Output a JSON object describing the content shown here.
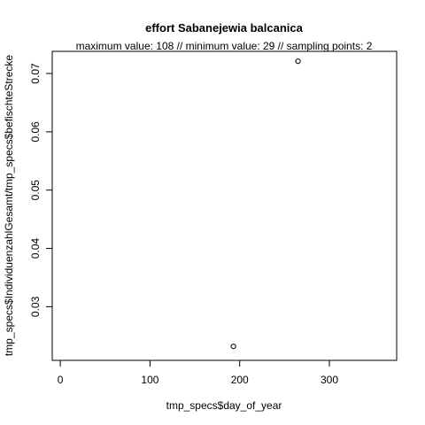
{
  "chart_data": {
    "type": "scatter",
    "title": "effort Sabanejewia balcanica",
    "subtitle": "maximum value: 108  //  minimum value: 29  // sampling points: 2",
    "xlabel": "tmp_specs$day_of_year",
    "ylabel": "tmp_specs$IndividuenzahlGesamt/tmp_specs$befischteStrecke",
    "xlim": [
      -9,
      375
    ],
    "ylim": [
      0.0208,
      0.0738
    ],
    "x_ticks": [
      0,
      100,
      200,
      300
    ],
    "x_tick_labels": [
      "0",
      "100",
      "200",
      "300"
    ],
    "y_ticks": [
      0.03,
      0.04,
      0.05,
      0.06,
      0.07
    ],
    "y_tick_labels": [
      "0.03",
      "0.04",
      "0.05",
      "0.06",
      "0.07"
    ],
    "grid": false,
    "marker": "open-circle",
    "points": [
      {
        "x": 193,
        "y": 0.0232
      },
      {
        "x": 265,
        "y": 0.0721
      }
    ]
  }
}
